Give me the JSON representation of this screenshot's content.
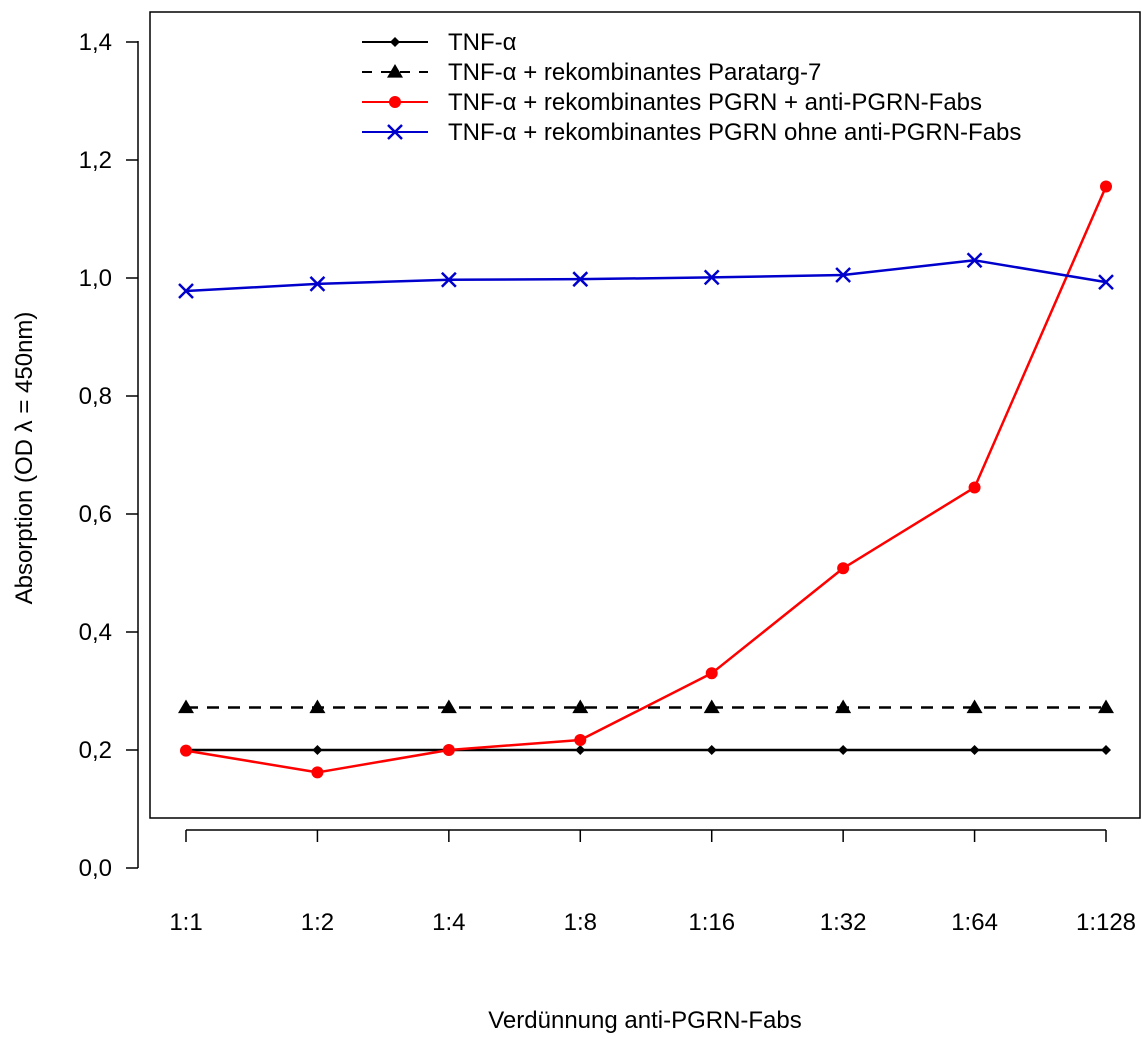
{
  "chart_data": {
    "type": "line",
    "title": "",
    "xlabel": "Verdünnung anti-PGRN-Fabs",
    "ylabel": "Absorption (OD λ = 450nm)",
    "categories": [
      "1:1",
      "1:2",
      "1:4",
      "1:8",
      "1:16",
      "1:32",
      "1:64",
      "1:128"
    ],
    "ylim": [
      -0.1,
      1.46
    ],
    "yticks": [
      0.0,
      0.2,
      0.4,
      0.6,
      0.8,
      1.0,
      1.2,
      1.4
    ],
    "ytick_labels": [
      "0,0",
      "0,2",
      "0,4",
      "0,6",
      "0,8",
      "1,0",
      "1,2",
      "1,4"
    ],
    "grid": false,
    "legend_position": "top",
    "series": [
      {
        "name": "TNF-α",
        "values": [
          0.2,
          0.2,
          0.2,
          0.2,
          0.2,
          0.2,
          0.2,
          0.2
        ],
        "color": "#000000",
        "line_style": "solid",
        "marker": "diamond"
      },
      {
        "name": "TNF-α + rekombinantes Paratarg-7",
        "values": [
          0.272,
          0.272,
          0.272,
          0.272,
          0.272,
          0.272,
          0.272,
          0.272
        ],
        "color": "#000000",
        "line_style": "dashed",
        "marker": "triangle"
      },
      {
        "name": "TNF-α + rekombinantes PGRN + anti-PGRN-Fabs",
        "values": [
          0.199,
          0.162,
          0.2,
          0.217,
          0.33,
          0.508,
          0.645,
          1.155
        ],
        "color": "#ff0000",
        "line_style": "solid",
        "marker": "circle"
      },
      {
        "name": "TNF-α + rekombinantes PGRN ohne anti-PGRN-Fabs",
        "values": [
          0.978,
          0.99,
          0.997,
          0.998,
          1.001,
          1.005,
          1.03,
          0.993
        ],
        "color": "#0000cc",
        "line_style": "solid",
        "marker": "x"
      }
    ]
  }
}
